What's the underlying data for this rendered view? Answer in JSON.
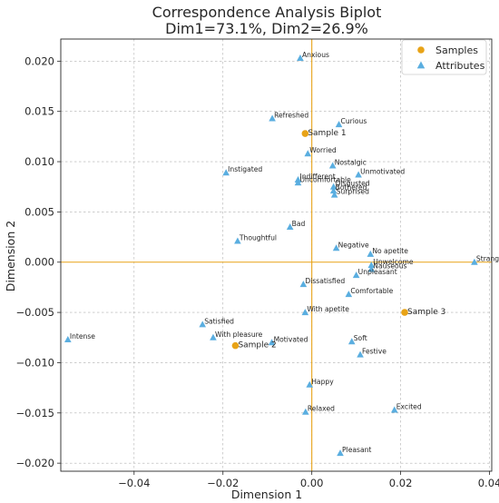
{
  "chart_data": {
    "type": "scatter",
    "title_line1": "Correspondence Analysis Biplot",
    "title_line2": "Dim1=73.1%, Dim2=26.9%",
    "xlabel": "Dimension 1",
    "ylabel": "Dimension 2",
    "xlim": [
      -0.0565,
      0.0405
    ],
    "ylim": [
      -0.0208,
      0.0222
    ],
    "xticks": [
      -0.04,
      -0.02,
      0.0,
      0.02,
      0.04
    ],
    "yticks": [
      -0.02,
      -0.015,
      -0.01,
      -0.005,
      0.0,
      0.005,
      0.01,
      0.015,
      0.02
    ],
    "xtick_labels": [
      "−0.04",
      "−0.02",
      "0.00",
      "0.02",
      "0.04"
    ],
    "ytick_labels": [
      "−0.020",
      "−0.015",
      "−0.010",
      "−0.005",
      "0.000",
      "0.005",
      "0.010",
      "0.015",
      "0.020"
    ],
    "grid": true,
    "legend_position": "top-right",
    "colors": {
      "samples": "#e8a317",
      "attributes": "#5aaee0",
      "ref_lines": "#e8a317"
    },
    "series": [
      {
        "name": "Samples",
        "marker": "circle",
        "points": [
          {
            "label": "Sample 1",
            "x": -0.0015,
            "y": 0.0128
          },
          {
            "label": "Sample 3",
            "x": 0.0209,
            "y": -0.005
          },
          {
            "label": "Sample 2",
            "x": -0.0172,
            "y": -0.0083
          }
        ]
      },
      {
        "name": "Attributes",
        "marker": "triangle",
        "points": [
          {
            "label": "Anxious",
            "x": -0.0026,
            "y": 0.0203
          },
          {
            "label": "Refreshed",
            "x": -0.0089,
            "y": 0.0143
          },
          {
            "label": "Curious",
            "x": 0.0061,
            "y": 0.0137
          },
          {
            "label": "Worried",
            "x": -0.0009,
            "y": 0.0108
          },
          {
            "label": "Nostalgic",
            "x": 0.0047,
            "y": 0.0096
          },
          {
            "label": "Instigated",
            "x": -0.0193,
            "y": 0.0089
          },
          {
            "label": "Unmotivated",
            "x": 0.0105,
            "y": 0.0087
          },
          {
            "label": "Indifferent",
            "x": -0.0031,
            "y": 0.0082
          },
          {
            "label": "Uncomfortable",
            "x": -0.0031,
            "y": 0.0079
          },
          {
            "label": "Disgusted",
            "x": 0.0049,
            "y": 0.0075
          },
          {
            "label": "Bothered",
            "x": 0.0049,
            "y": 0.0071
          },
          {
            "label": "Surprised",
            "x": 0.0051,
            "y": 0.0067
          },
          {
            "label": "Bad",
            "x": -0.0049,
            "y": 0.0035
          },
          {
            "label": "Thoughtful",
            "x": -0.0167,
            "y": 0.0021
          },
          {
            "label": "Negative",
            "x": 0.0055,
            "y": 0.0014
          },
          {
            "label": "No apetite",
            "x": 0.0132,
            "y": 0.0008
          },
          {
            "label": "Strange",
            "x": 0.0366,
            "y": 0.0
          },
          {
            "label": "Unwelcome",
            "x": 0.0134,
            "y": -0.0003
          },
          {
            "label": "Nauseous",
            "x": 0.0134,
            "y": -0.0007
          },
          {
            "label": "Unpleasant",
            "x": 0.01,
            "y": -0.0013
          },
          {
            "label": "Dissatisfied",
            "x": -0.0019,
            "y": -0.0022
          },
          {
            "label": "Comfortable",
            "x": 0.0083,
            "y": -0.0032
          },
          {
            "label": "With apetite",
            "x": -0.0015,
            "y": -0.005
          },
          {
            "label": "Satisfied",
            "x": -0.0246,
            "y": -0.0062
          },
          {
            "label": "With pleasure",
            "x": -0.0222,
            "y": -0.0075
          },
          {
            "label": "Intense",
            "x": -0.0549,
            "y": -0.0077
          },
          {
            "label": "Motivated",
            "x": -0.009,
            "y": -0.008
          },
          {
            "label": "Soft",
            "x": 0.009,
            "y": -0.0079
          },
          {
            "label": "Festive",
            "x": 0.0109,
            "y": -0.0092
          },
          {
            "label": "Happy",
            "x": -0.0005,
            "y": -0.0122
          },
          {
            "label": "Excited",
            "x": 0.0186,
            "y": -0.0147
          },
          {
            "label": "Relaxed",
            "x": -0.0014,
            "y": -0.0149
          },
          {
            "label": "Pleasant",
            "x": 0.0064,
            "y": -0.019
          }
        ]
      }
    ]
  }
}
